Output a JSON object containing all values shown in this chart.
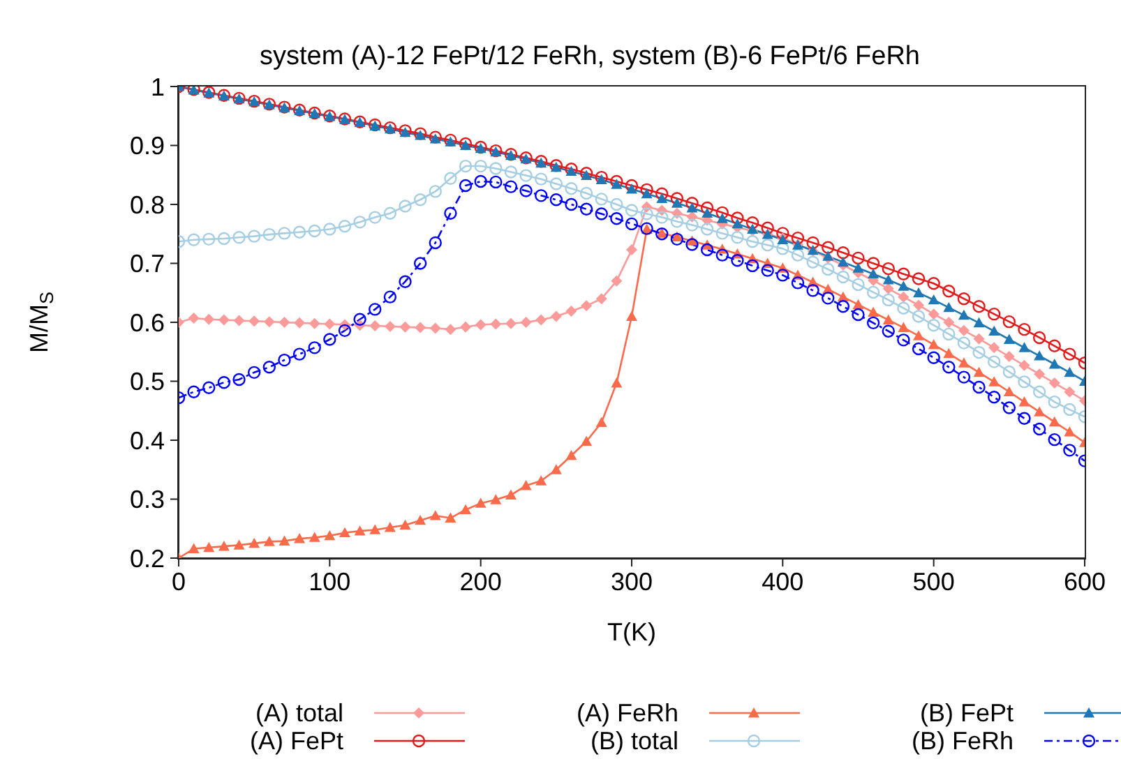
{
  "chart_data": {
    "type": "line",
    "title": "system (A)-12 FePt/12 FeRh, system (B)-6 FePt/6 FeRh",
    "xlabel": "T(K)",
    "ylabel": "M/M$_{S}$",
    "x": [
      0,
      10,
      20,
      30,
      40,
      50,
      60,
      70,
      80,
      90,
      100,
      110,
      120,
      130,
      140,
      150,
      160,
      170,
      180,
      190,
      200,
      210,
      220,
      230,
      240,
      250,
      260,
      270,
      280,
      290,
      300,
      310,
      320,
      330,
      340,
      350,
      360,
      370,
      380,
      390,
      400,
      410,
      420,
      430,
      440,
      450,
      460,
      470,
      480,
      490,
      500,
      510,
      520,
      530,
      540,
      550,
      560,
      570,
      580,
      590,
      600
    ],
    "series": [
      {
        "name": "(A) total",
        "color": "#fb9a99",
        "marker": "diamond",
        "line_style": "solid",
        "values": [
          0.6,
          0.607,
          0.605,
          0.604,
          0.603,
          0.602,
          0.601,
          0.6,
          0.599,
          0.598,
          0.597,
          0.596,
          0.595,
          0.594,
          0.593,
          0.592,
          0.591,
          0.59,
          0.588,
          0.592,
          0.596,
          0.597,
          0.598,
          0.6,
          0.604,
          0.61,
          0.619,
          0.628,
          0.64,
          0.67,
          0.723,
          0.796,
          0.79,
          0.785,
          0.779,
          0.773,
          0.767,
          0.761,
          0.755,
          0.749,
          0.743,
          0.732,
          0.721,
          0.709,
          0.697,
          0.684,
          0.671,
          0.657,
          0.643,
          0.629,
          0.614,
          0.6,
          0.586,
          0.572,
          0.557,
          0.542,
          0.527,
          0.512,
          0.497,
          0.482,
          0.467
        ]
      },
      {
        "name": "(A) FePt",
        "color": "#e31a1c",
        "marker": "circle",
        "line_style": "solid",
        "values": [
          1.0,
          0.995,
          0.99,
          0.985,
          0.98,
          0.975,
          0.97,
          0.965,
          0.96,
          0.955,
          0.95,
          0.945,
          0.94,
          0.935,
          0.93,
          0.925,
          0.92,
          0.914,
          0.909,
          0.903,
          0.897,
          0.891,
          0.885,
          0.879,
          0.873,
          0.866,
          0.86,
          0.853,
          0.846,
          0.839,
          0.832,
          0.825,
          0.818,
          0.81,
          0.802,
          0.794,
          0.786,
          0.777,
          0.769,
          0.76,
          0.751,
          0.743,
          0.735,
          0.727,
          0.718,
          0.709,
          0.7,
          0.691,
          0.682,
          0.674,
          0.666,
          0.653,
          0.64,
          0.627,
          0.614,
          0.601,
          0.588,
          0.574,
          0.56,
          0.546,
          0.531
        ]
      },
      {
        "name": "(A) FeRh",
        "color": "#fb6a4a",
        "marker": "triangle",
        "line_style": "solid",
        "values": [
          0.2,
          0.216,
          0.218,
          0.22,
          0.222,
          0.225,
          0.228,
          0.229,
          0.233,
          0.235,
          0.238,
          0.243,
          0.246,
          0.248,
          0.252,
          0.256,
          0.264,
          0.272,
          0.268,
          0.282,
          0.293,
          0.299,
          0.307,
          0.323,
          0.331,
          0.35,
          0.374,
          0.398,
          0.43,
          0.497,
          0.61,
          0.758,
          0.751,
          0.745,
          0.738,
          0.731,
          0.724,
          0.716,
          0.708,
          0.7,
          0.692,
          0.68,
          0.668,
          0.656,
          0.643,
          0.63,
          0.617,
          0.604,
          0.591,
          0.577,
          0.562,
          0.547,
          0.531,
          0.515,
          0.499,
          0.482,
          0.465,
          0.448,
          0.431,
          0.414,
          0.396
        ]
      },
      {
        "name": "(B) total",
        "color": "#a6cee3",
        "marker": "circle",
        "line_style": "solid",
        "values": [
          0.737,
          0.74,
          0.741,
          0.742,
          0.744,
          0.746,
          0.749,
          0.751,
          0.753,
          0.755,
          0.758,
          0.763,
          0.77,
          0.778,
          0.785,
          0.797,
          0.808,
          0.822,
          0.844,
          0.865,
          0.865,
          0.861,
          0.855,
          0.849,
          0.843,
          0.835,
          0.827,
          0.819,
          0.809,
          0.8,
          0.79,
          0.784,
          0.778,
          0.771,
          0.765,
          0.758,
          0.751,
          0.744,
          0.737,
          0.731,
          0.725,
          0.714,
          0.702,
          0.69,
          0.677,
          0.664,
          0.651,
          0.638,
          0.624,
          0.61,
          0.595,
          0.58,
          0.565,
          0.549,
          0.533,
          0.516,
          0.499,
          0.482,
          0.465,
          0.452,
          0.44
        ]
      },
      {
        "name": "(B) FePt",
        "color": "#1f78b4",
        "marker": "triangle",
        "line_style": "solid",
        "values": [
          1.0,
          0.994,
          0.989,
          0.984,
          0.979,
          0.974,
          0.969,
          0.964,
          0.959,
          0.954,
          0.949,
          0.944,
          0.939,
          0.933,
          0.928,
          0.922,
          0.917,
          0.911,
          0.906,
          0.9,
          0.895,
          0.889,
          0.883,
          0.877,
          0.87,
          0.863,
          0.856,
          0.849,
          0.842,
          0.834,
          0.826,
          0.818,
          0.81,
          0.802,
          0.794,
          0.785,
          0.776,
          0.767,
          0.758,
          0.749,
          0.74,
          0.731,
          0.722,
          0.712,
          0.702,
          0.692,
          0.682,
          0.672,
          0.661,
          0.65,
          0.638,
          0.625,
          0.612,
          0.599,
          0.585,
          0.571,
          0.557,
          0.543,
          0.529,
          0.515,
          0.5
        ]
      },
      {
        "name": "(B) FeRh",
        "color": "#0000ff",
        "marker": "circle",
        "line_style": "dashed",
        "values": [
          0.472,
          0.482,
          0.489,
          0.498,
          0.503,
          0.515,
          0.524,
          0.536,
          0.546,
          0.557,
          0.571,
          0.586,
          0.605,
          0.622,
          0.643,
          0.669,
          0.7,
          0.735,
          0.785,
          0.832,
          0.839,
          0.838,
          0.83,
          0.823,
          0.815,
          0.808,
          0.8,
          0.792,
          0.784,
          0.776,
          0.767,
          0.759,
          0.75,
          0.741,
          0.732,
          0.723,
          0.714,
          0.705,
          0.696,
          0.688,
          0.68,
          0.667,
          0.654,
          0.641,
          0.627,
          0.613,
          0.599,
          0.585,
          0.57,
          0.555,
          0.54,
          0.524,
          0.507,
          0.49,
          0.473,
          0.455,
          0.437,
          0.419,
          0.401,
          0.383,
          0.365
        ]
      }
    ],
    "xlim": [
      0,
      600
    ],
    "xticks": [
      0,
      100,
      200,
      300,
      400,
      500,
      600
    ],
    "ylim": [
      0.2,
      1
    ],
    "yticks": [
      0.2,
      0.3,
      0.4,
      0.5,
      0.6,
      0.7,
      0.8,
      0.9,
      1
    ],
    "grid": false,
    "legend": "bottom"
  }
}
